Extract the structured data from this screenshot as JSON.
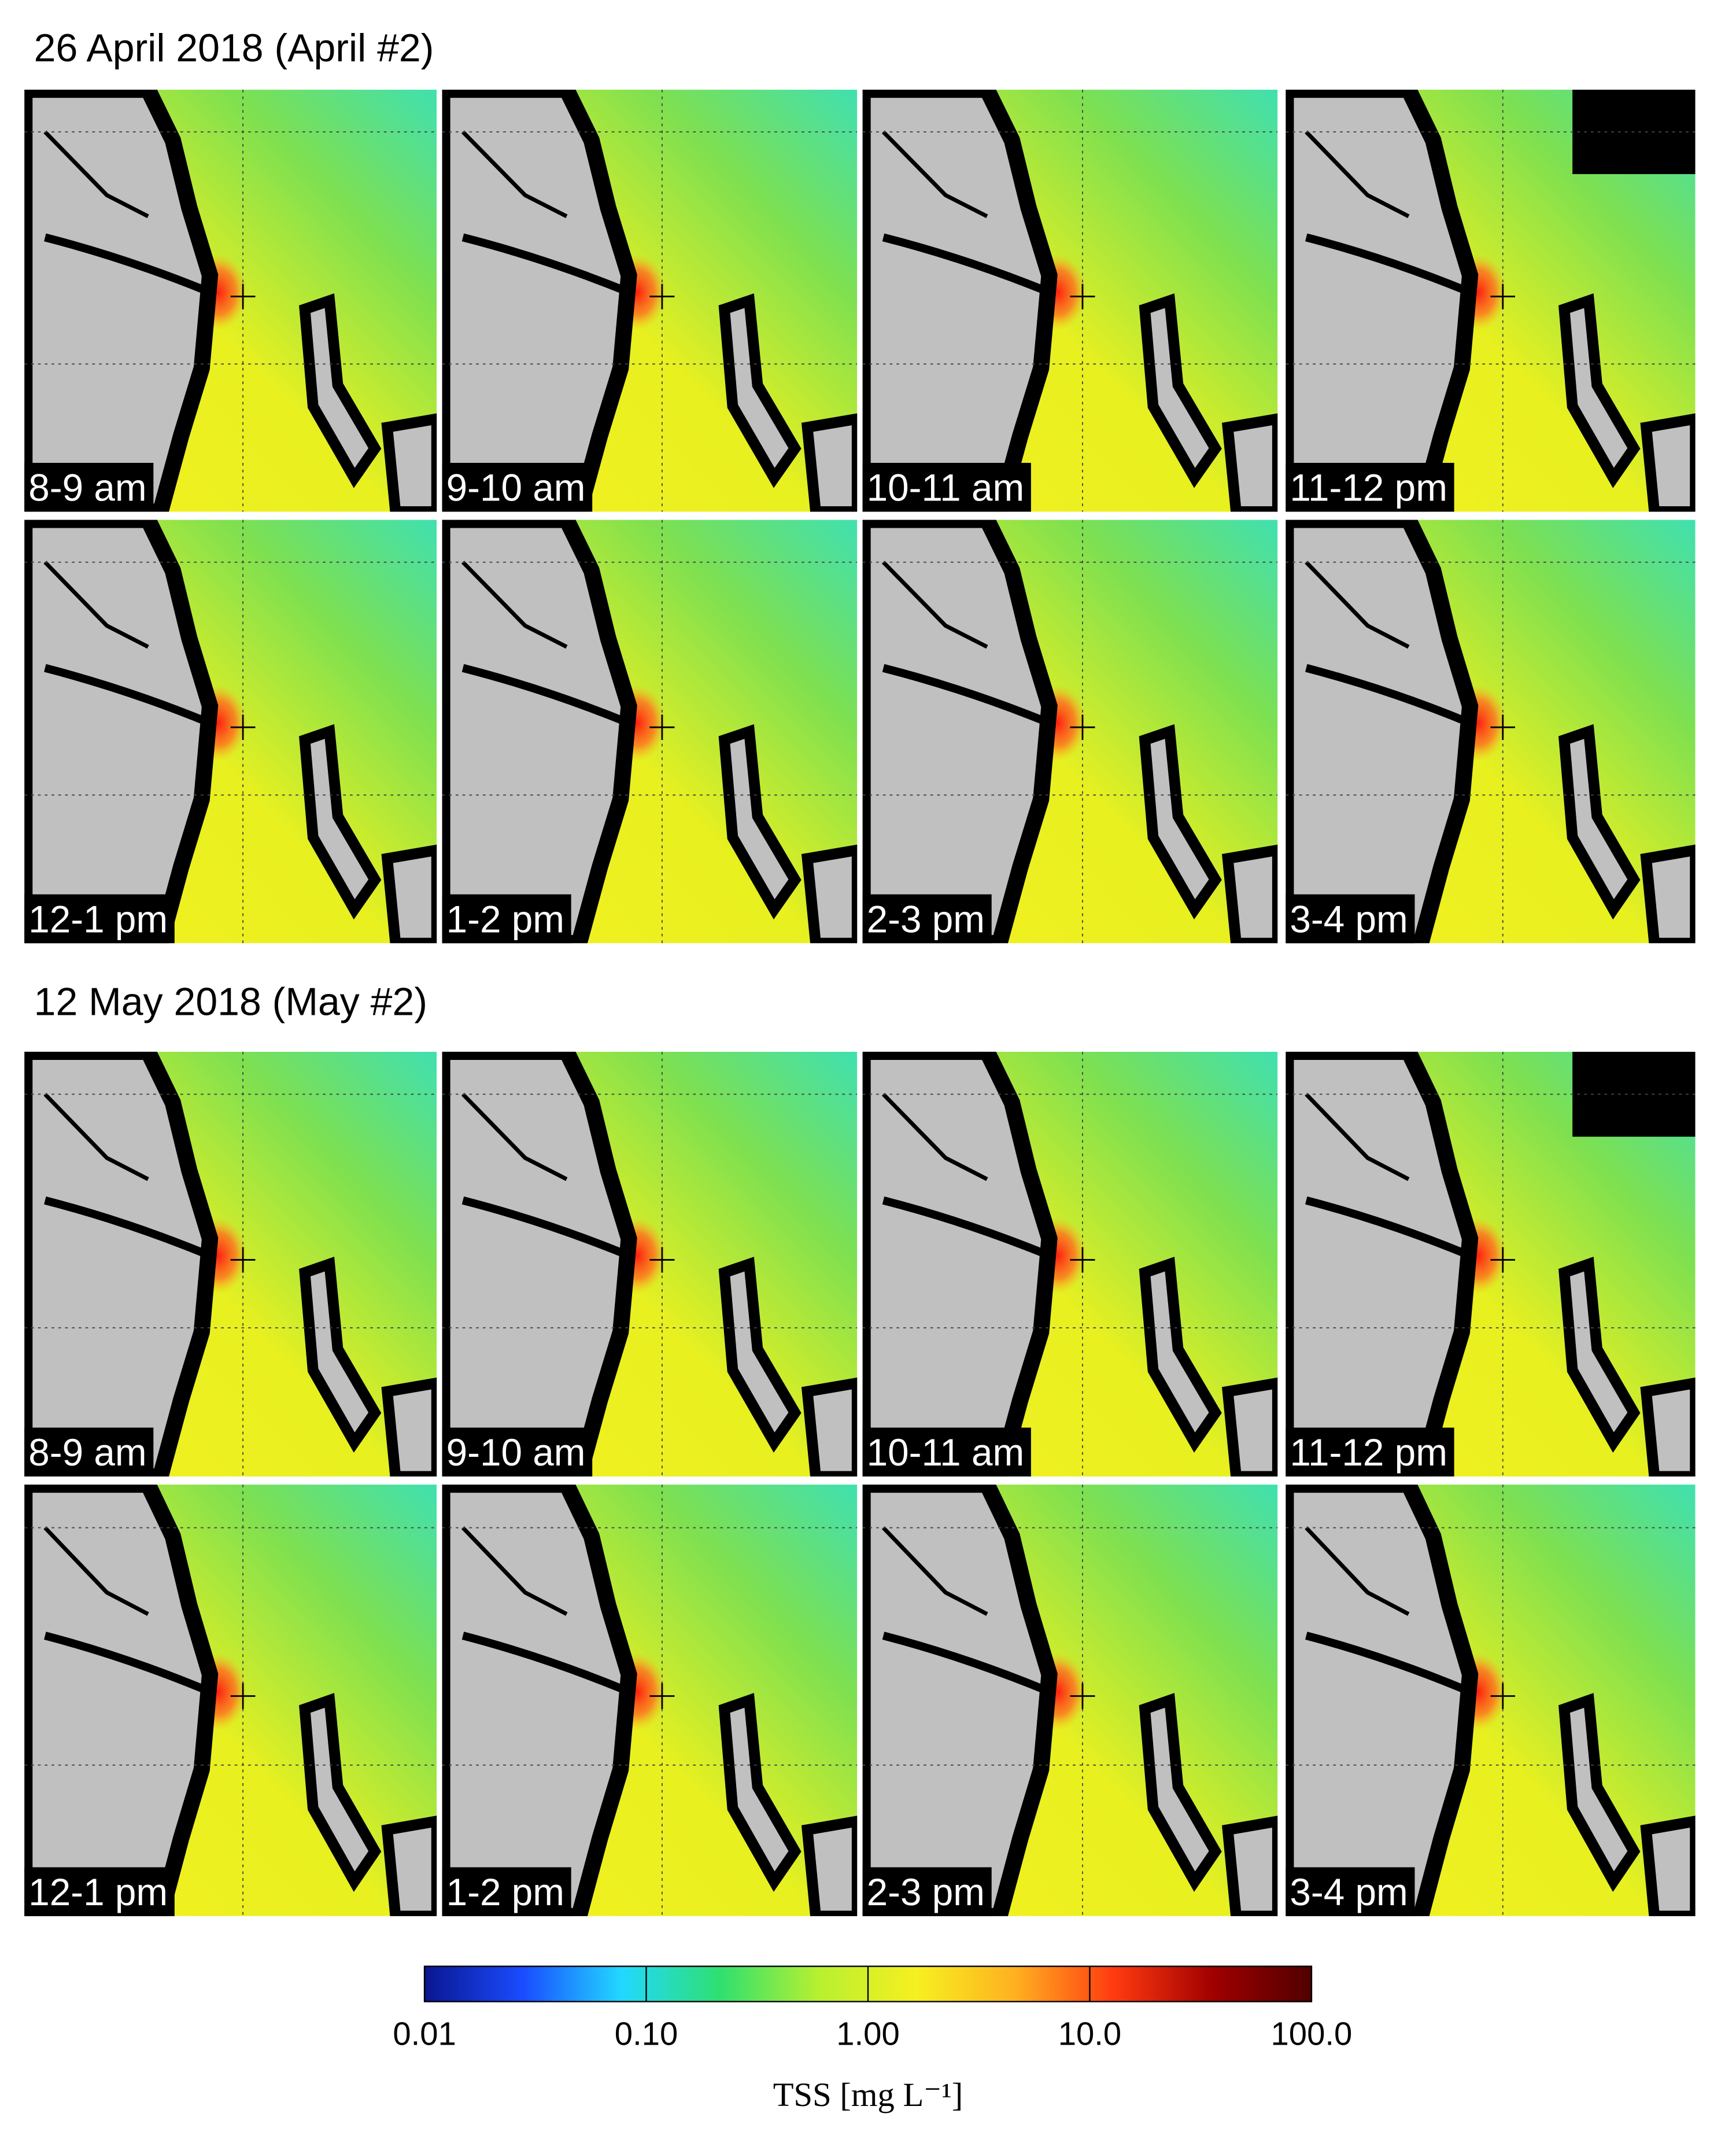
{
  "sections": [
    {
      "title": "26 April 2018 (April #2)",
      "panels": [
        "8-9 am",
        "9-10 am",
        "10-11 am",
        "11-12 pm",
        "12-1 pm",
        "1-2 pm",
        "2-3 pm",
        "3-4 pm"
      ]
    },
    {
      "title": "12 May 2018 (May #2)",
      "panels": [
        "8-9 am",
        "9-10 am",
        "10-11 am",
        "11-12 pm",
        "12-1 pm",
        "1-2 pm",
        "2-3 pm",
        "3-4 pm"
      ]
    }
  ],
  "colorbar": {
    "label": "TSS [mg L⁻¹]",
    "scale": "log",
    "lim": [
      0.01,
      100
    ],
    "ticks": [
      {
        "value": 0.01,
        "label": "0.01"
      },
      {
        "value": 0.1,
        "label": "0.10"
      },
      {
        "value": 1,
        "label": "1.00"
      },
      {
        "value": 10,
        "label": "10.0"
      },
      {
        "value": 100,
        "label": "100.0"
      }
    ],
    "colors": [
      "#0a1690",
      "#1a4cff",
      "#22d8ff",
      "#2ee070",
      "#b8f030",
      "#f6f020",
      "#ffb020",
      "#ff3a10",
      "#a00000",
      "#500000"
    ]
  }
}
